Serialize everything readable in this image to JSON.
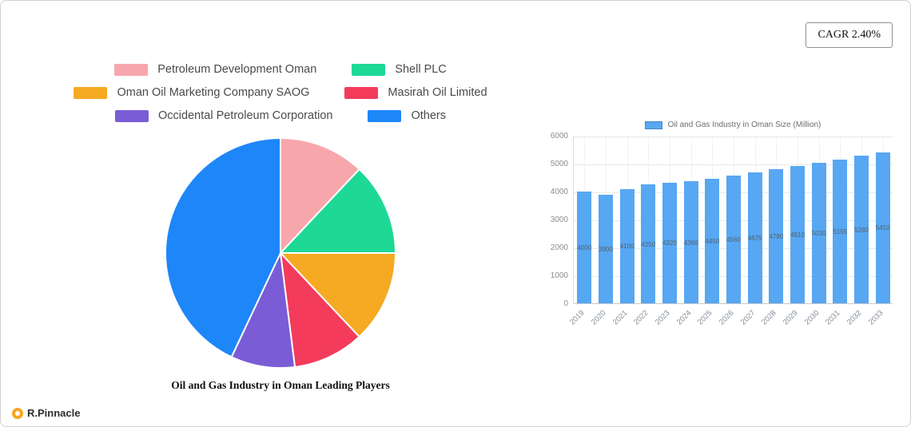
{
  "header": {
    "cagr": "CAGR 2.40%"
  },
  "footer": {
    "brand": "R.Pinnacle"
  },
  "chart_data": [
    {
      "type": "pie",
      "title": "Oil and Gas Industry in Oman Leading Players",
      "legend_position": "top",
      "slices": [
        {
          "label": "Petroleum Development Oman",
          "value": 12,
          "color": "#F7A6AC"
        },
        {
          "label": "Shell PLC",
          "value": 13,
          "color": "#1ED896"
        },
        {
          "label": "Oman Oil Marketing Company SAOG",
          "value": 13,
          "color": "#F6A922"
        },
        {
          "label": "Masirah Oil Limited",
          "value": 10,
          "color": "#F43B5C"
        },
        {
          "label": "Occidental Petroleum Corporation",
          "value": 9,
          "color": "#7A5CD6"
        },
        {
          "label": "Others",
          "value": 43,
          "color": "#1D86F9"
        }
      ]
    },
    {
      "type": "bar",
      "legend": "Oil and Gas Industry in Oman Size (Million)",
      "bar_color": "#57A7F3",
      "categories": [
        "2019",
        "2020",
        "2021",
        "2022",
        "2023",
        "2024",
        "2025",
        "2026",
        "2027",
        "2028",
        "2029",
        "2030",
        "2031",
        "2032",
        "2033"
      ],
      "values": [
        4000,
        3900,
        4100,
        4250,
        4320,
        4360,
        4450,
        4560,
        4675,
        4790,
        4910,
        5030,
        5155,
        5280,
        5410
      ],
      "ylim": [
        0,
        6000
      ],
      "yticks": [
        0,
        1000,
        2000,
        3000,
        4000,
        5000,
        6000
      ],
      "grid": true,
      "legend_position": "top"
    }
  ]
}
